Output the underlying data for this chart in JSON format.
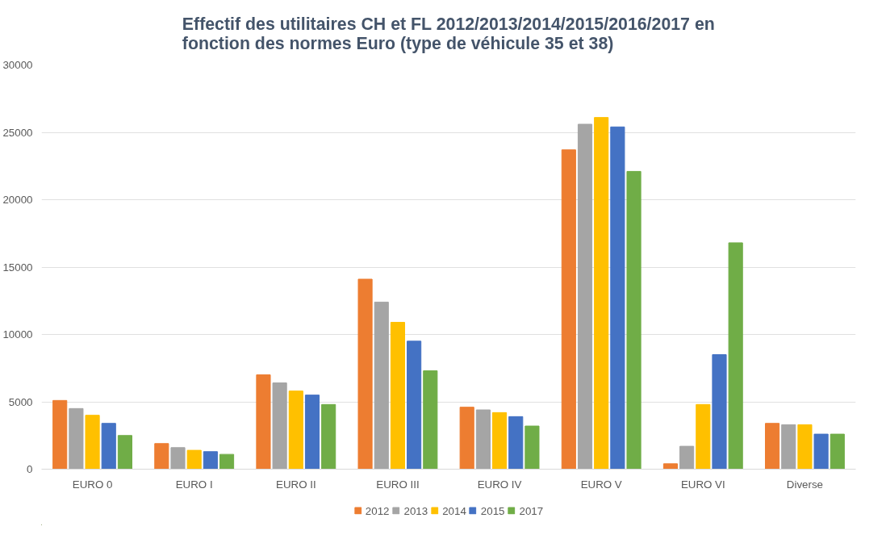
{
  "chart_data": {
    "type": "bar",
    "title": "Effectif des utilitaires CH et FL 2012/2013/2014/2015/2016/2017 en fonction des normes Euro (type de véhicule 35 et 38)",
    "categories": [
      "EURO 0",
      "EURO I",
      "EURO II",
      "EURO III",
      "EURO IV",
      "EURO V",
      "EURO VI",
      "Diverse"
    ],
    "series": [
      {
        "name": "2012",
        "color": "#ed7d31",
        "values": [
          5100,
          1900,
          7000,
          14100,
          4600,
          23700,
          400,
          3400
        ]
      },
      {
        "name": "2013",
        "color": "#a5a5a5",
        "values": [
          4500,
          1600,
          6400,
          12400,
          4400,
          25600,
          1700,
          3300
        ]
      },
      {
        "name": "2014",
        "color": "#ffc000",
        "values": [
          4000,
          1400,
          5800,
          10900,
          4200,
          26100,
          4800,
          3300
        ]
      },
      {
        "name": "2015",
        "color": "#4472c4",
        "values": [
          3400,
          1300,
          5500,
          9500,
          3900,
          25400,
          8500,
          2600
        ]
      },
      {
        "name": "2017",
        "color": "#70ad47",
        "values": [
          2500,
          1100,
          4800,
          7300,
          3200,
          22100,
          16800,
          2600
        ]
      }
    ],
    "ylim": [
      0,
      30000
    ],
    "yticks": [
      0,
      5000,
      10000,
      15000,
      20000,
      25000,
      30000
    ],
    "grid": "y",
    "legend": "bottom"
  }
}
